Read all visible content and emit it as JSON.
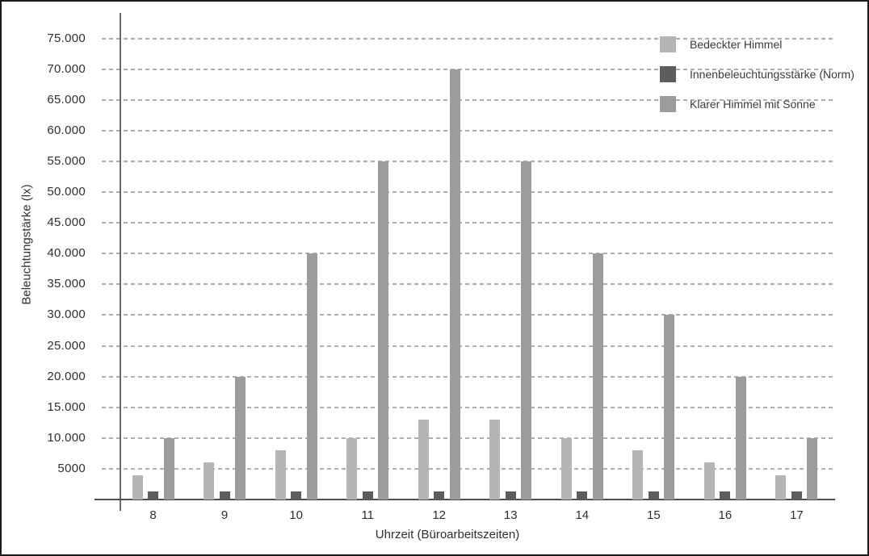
{
  "chart_data": {
    "type": "bar",
    "title": "",
    "xlabel": "Uhrzeit (Büroarbeitszeiten)",
    "ylabel": "Beleuchtungstärke (lx)",
    "categories": [
      "8",
      "9",
      "10",
      "11",
      "12",
      "13",
      "14",
      "15",
      "16",
      "17"
    ],
    "series": [
      {
        "name": "Bedeckter Himmel",
        "color": "#b5b5b5",
        "values": [
          4000,
          6000,
          8000,
          10000,
          13000,
          13000,
          10000,
          8000,
          6000,
          4000
        ]
      },
      {
        "name": "Innenbeleuchtungsstärke (Norm)",
        "color": "#5d5d5d",
        "values": [
          1300,
          1300,
          1300,
          1300,
          1300,
          1300,
          1300,
          1300,
          1300,
          1300
        ]
      },
      {
        "name": "Klarer Himmel mit Sonne",
        "color": "#9c9c9c",
        "values": [
          10000,
          20000,
          40000,
          55000,
          70000,
          55000,
          40000,
          30000,
          20000,
          10000
        ]
      }
    ],
    "ylim": [
      0,
      75000
    ],
    "ytick_step": 5000,
    "yticks": [
      {
        "value": 5000,
        "label": "5000"
      },
      {
        "value": 10000,
        "label": "10.000"
      },
      {
        "value": 15000,
        "label": "15.000"
      },
      {
        "value": 20000,
        "label": "20.000"
      },
      {
        "value": 25000,
        "label": "25.000"
      },
      {
        "value": 30000,
        "label": "30.000"
      },
      {
        "value": 35000,
        "label": "35.000"
      },
      {
        "value": 40000,
        "label": "40.000"
      },
      {
        "value": 45000,
        "label": "45.000"
      },
      {
        "value": 50000,
        "label": "50.000"
      },
      {
        "value": 55000,
        "label": "55.000"
      },
      {
        "value": 60000,
        "label": "60.000"
      },
      {
        "value": 65000,
        "label": "65.000"
      },
      {
        "value": 70000,
        "label": "70.000"
      },
      {
        "value": 75000,
        "label": "75.000"
      }
    ],
    "grid": "horizontal-dashed",
    "legend_position": "top-right"
  }
}
